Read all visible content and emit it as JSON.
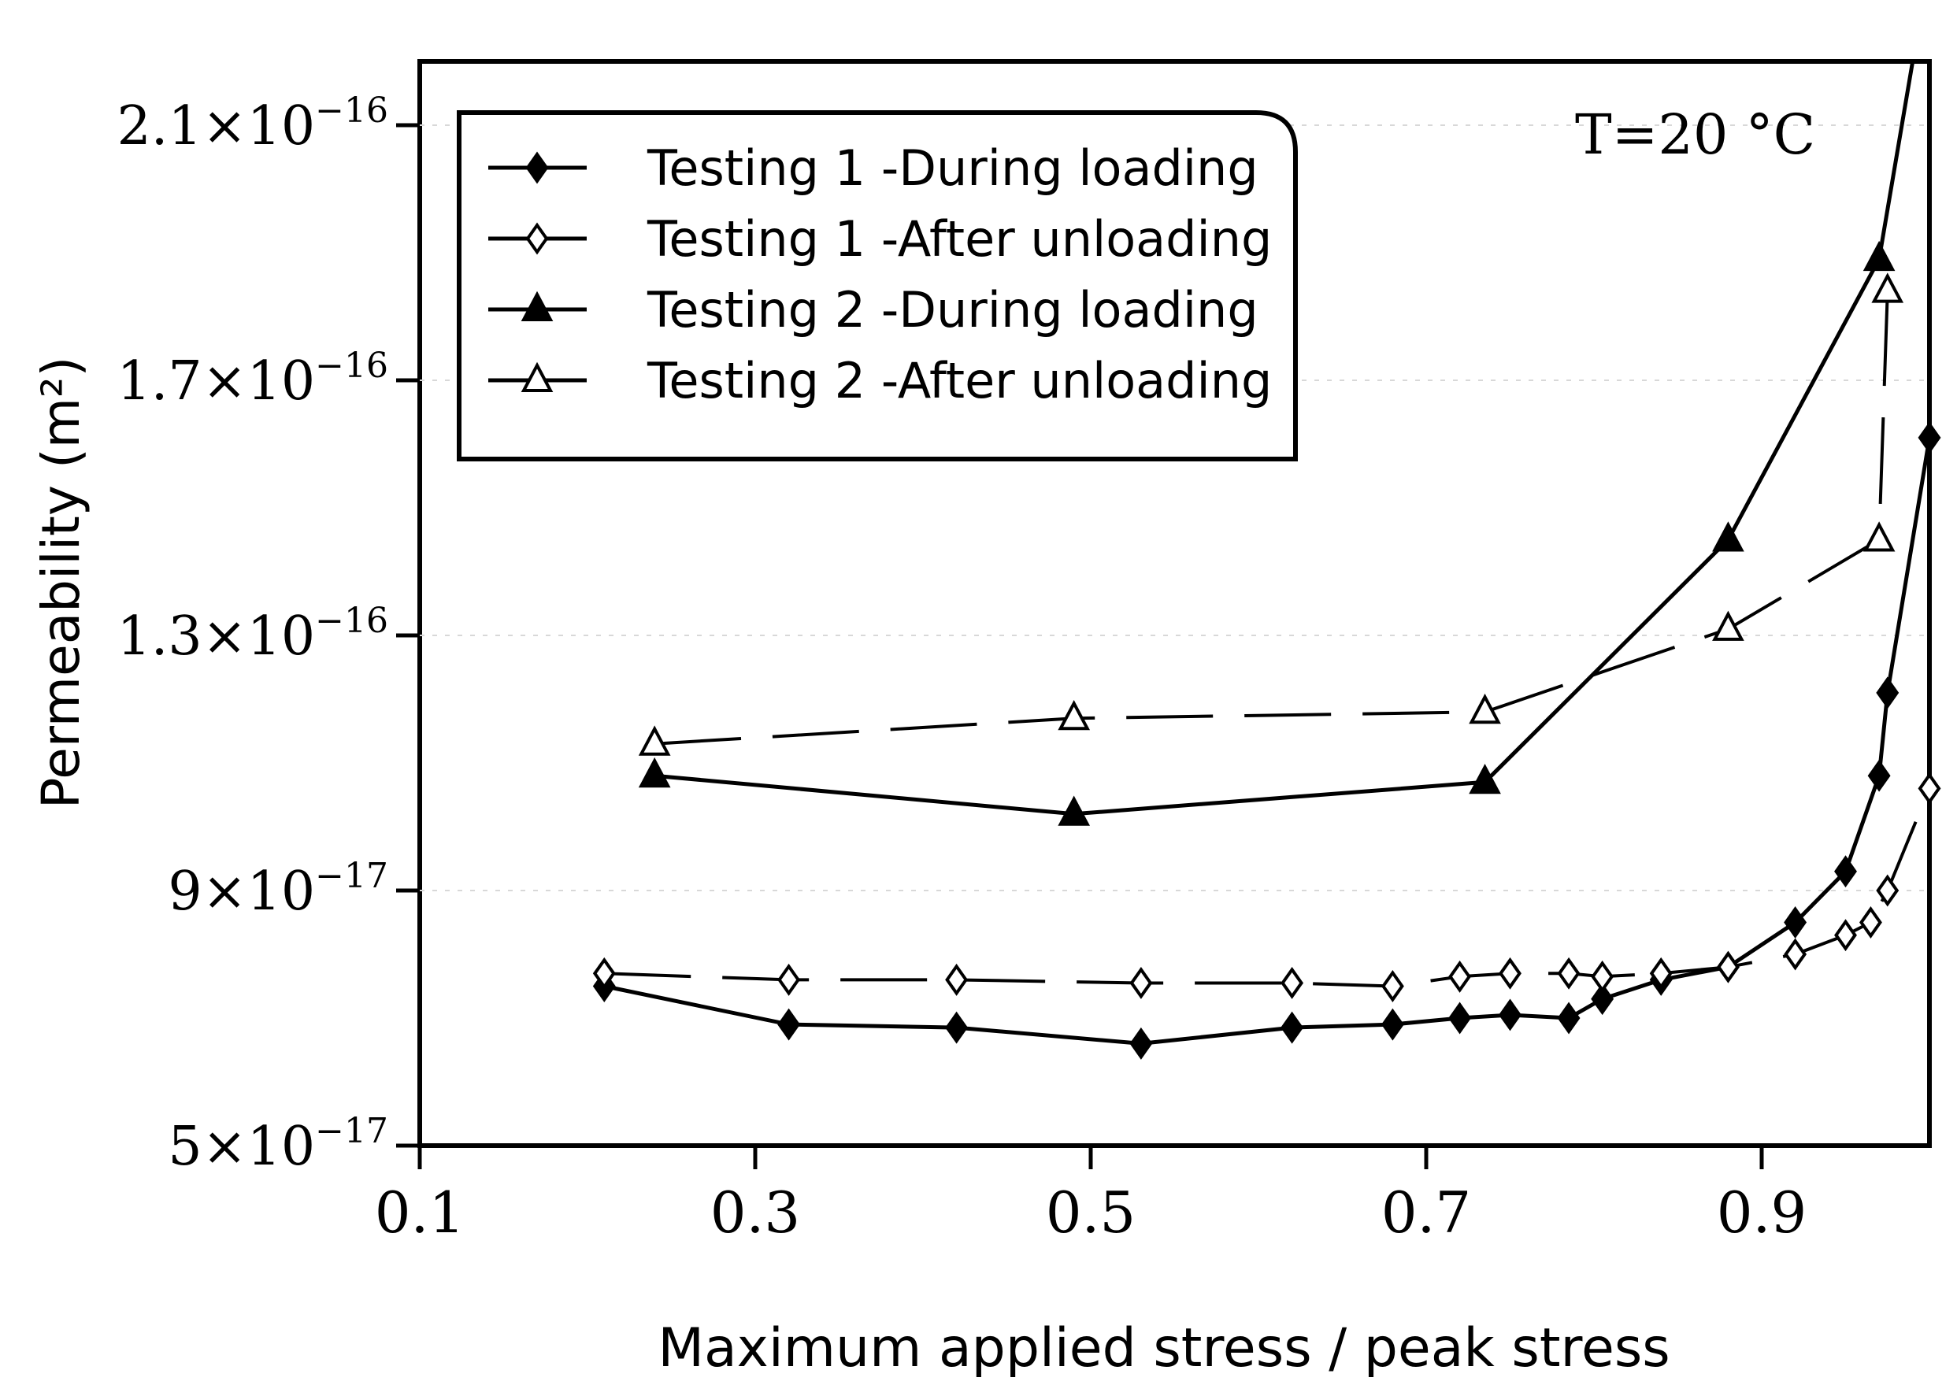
{
  "chart_data": {
    "type": "line",
    "title": "",
    "annotation": "T=20 °C",
    "xlabel": "Maximum applied stress / peak stress",
    "ylabel": "Permeability (m²)",
    "xlim": [
      0.1,
      1.0
    ],
    "ylim": [
      5e-17,
      2.2e-16
    ],
    "x_ticks": [
      {
        "value": 0.1,
        "label": "0.1"
      },
      {
        "value": 0.3,
        "label": "0.3"
      },
      {
        "value": 0.5,
        "label": "0.5"
      },
      {
        "value": 0.7,
        "label": "0.7"
      },
      {
        "value": 0.9,
        "label": "0.9"
      }
    ],
    "y_ticks": [
      {
        "value": 5e-17,
        "mant": "5",
        "exp": "−17"
      },
      {
        "value": 9e-17,
        "mant": "9",
        "exp": "−17"
      },
      {
        "value": 1.3e-16,
        "mant": "1.3",
        "exp": "−16"
      },
      {
        "value": 1.7e-16,
        "mant": "1.7",
        "exp": "−16"
      },
      {
        "value": 2.1e-16,
        "mant": "2.1",
        "exp": "−16"
      }
    ],
    "legend_position": "top-left",
    "series": [
      {
        "name": "Testing 1 -During loading",
        "marker": "diamond-filled",
        "dashed": false,
        "color": "#000000",
        "x": [
          0.21,
          0.32,
          0.42,
          0.53,
          0.62,
          0.68,
          0.72,
          0.75,
          0.785,
          0.805,
          0.84,
          0.88,
          0.92,
          0.95,
          0.97,
          0.975,
          1.0
        ],
        "y": [
          7.5e-17,
          6.9e-17,
          6.85e-17,
          6.6e-17,
          6.85e-17,
          6.9e-17,
          7e-17,
          7.05e-17,
          7e-17,
          7.3e-17,
          7.6e-17,
          7.8e-17,
          8.5e-17,
          9.3e-17,
          1.08e-16,
          1.21e-16,
          1.61e-16
        ]
      },
      {
        "name": "Testing 1 -After unloading",
        "marker": "diamond-open",
        "dashed": true,
        "color": "#000000",
        "x": [
          0.21,
          0.32,
          0.42,
          0.53,
          0.62,
          0.68,
          0.72,
          0.75,
          0.785,
          0.805,
          0.84,
          0.88,
          0.92,
          0.95,
          0.965,
          0.975,
          1.0
        ],
        "y": [
          7.7e-17,
          7.6e-17,
          7.6e-17,
          7.55e-17,
          7.55e-17,
          7.5e-17,
          7.65e-17,
          7.7e-17,
          7.7e-17,
          7.65e-17,
          7.7e-17,
          7.8e-17,
          8e-17,
          8.3e-17,
          8.5e-17,
          9e-17,
          1.06e-16
        ]
      },
      {
        "name": "Testing 2 -During loading",
        "marker": "triangle-filled",
        "dashed": false,
        "color": "#000000",
        "x": [
          0.24,
          0.49,
          0.735,
          0.88,
          0.97,
          0.99
        ],
        "y": [
          1.08e-16,
          1.02e-16,
          1.07e-16,
          1.45e-16,
          1.89e-16,
          2.2e-16
        ]
      },
      {
        "name": "Testing 2 -After unloading",
        "marker": "triangle-open",
        "dashed": true,
        "color": "#000000",
        "x": [
          0.24,
          0.49,
          0.735,
          0.88,
          0.97,
          0.975
        ],
        "y": [
          1.13e-16,
          1.17e-16,
          1.18e-16,
          1.31e-16,
          1.45e-16,
          1.84e-16
        ]
      }
    ]
  }
}
